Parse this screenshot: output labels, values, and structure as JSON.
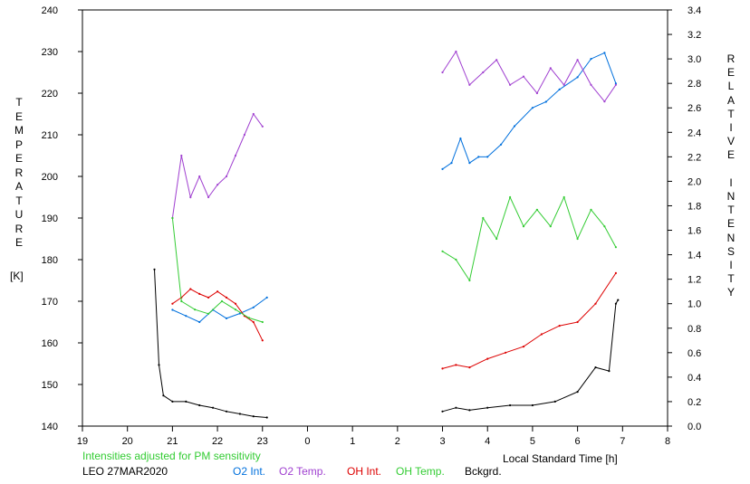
{
  "chart_data": {
    "type": "line",
    "annotation": "Intensities adjusted for PM sensitivity",
    "station_date": "LEO 27MAR2020",
    "xlabel": "Local Standard Time [h]",
    "x_ticks": [
      "19",
      "20",
      "21",
      "22",
      "23",
      "0",
      "1",
      "2",
      "3",
      "4",
      "5",
      "6",
      "7",
      "8"
    ],
    "xlim": [
      19,
      32
    ],
    "y_left": {
      "label": "TEMPERATURE",
      "unit": "[K]",
      "range": [
        140,
        240
      ],
      "ticks": [
        140,
        150,
        160,
        170,
        180,
        190,
        200,
        210,
        220,
        230,
        240
      ]
    },
    "y_right": {
      "label": "RELATIVE INTENSITY",
      "range": [
        0.0,
        3.4
      ],
      "ticks": [
        "0.0",
        "0.2",
        "0.4",
        "0.6",
        "0.8",
        "1.0",
        "1.2",
        "1.4",
        "1.6",
        "1.8",
        "2.0",
        "2.2",
        "2.4",
        "2.6",
        "2.8",
        "3.0",
        "3.2",
        "3.4"
      ]
    },
    "grid": false,
    "legend_position": "bottom",
    "series": [
      {
        "name": "O2 Int.",
        "color": "#0070dd",
        "axis": "right",
        "points": [
          [
            21.0,
            0.95
          ],
          [
            21.3,
            0.9
          ],
          [
            21.6,
            0.85
          ],
          [
            21.9,
            0.95
          ],
          [
            22.2,
            0.88
          ],
          [
            22.5,
            0.92
          ],
          [
            22.8,
            0.97
          ],
          [
            23.1,
            1.05
          ],
          [
            27.0,
            2.1
          ],
          [
            27.2,
            2.15
          ],
          [
            27.4,
            2.35
          ],
          [
            27.6,
            2.15
          ],
          [
            27.8,
            2.2
          ],
          [
            28.0,
            2.2
          ],
          [
            28.3,
            2.3
          ],
          [
            28.6,
            2.45
          ],
          [
            29.0,
            2.6
          ],
          [
            29.3,
            2.65
          ],
          [
            29.6,
            2.75
          ],
          [
            30.0,
            2.85
          ],
          [
            30.3,
            3.0
          ],
          [
            30.6,
            3.05
          ],
          [
            30.85,
            2.8
          ]
        ]
      },
      {
        "name": "O2 Temp.",
        "color": "#a040d0",
        "axis": "left",
        "points": [
          [
            21.0,
            190
          ],
          [
            21.2,
            205
          ],
          [
            21.4,
            195
          ],
          [
            21.6,
            200
          ],
          [
            21.8,
            195
          ],
          [
            22.0,
            198
          ],
          [
            22.2,
            200
          ],
          [
            22.4,
            205
          ],
          [
            22.6,
            210
          ],
          [
            22.8,
            215
          ],
          [
            23.0,
            212
          ],
          [
            27.0,
            225
          ],
          [
            27.3,
            230
          ],
          [
            27.6,
            222
          ],
          [
            27.9,
            225
          ],
          [
            28.2,
            228
          ],
          [
            28.5,
            222
          ],
          [
            28.8,
            224
          ],
          [
            29.1,
            220
          ],
          [
            29.4,
            226
          ],
          [
            29.7,
            222
          ],
          [
            30.0,
            228
          ],
          [
            30.3,
            222
          ],
          [
            30.6,
            218
          ],
          [
            30.85,
            222
          ]
        ]
      },
      {
        "name": "OH Int.",
        "color": "#dd0000",
        "axis": "right",
        "points": [
          [
            21.0,
            1.0
          ],
          [
            21.2,
            1.05
          ],
          [
            21.4,
            1.12
          ],
          [
            21.6,
            1.08
          ],
          [
            21.8,
            1.05
          ],
          [
            22.0,
            1.1
          ],
          [
            22.2,
            1.05
          ],
          [
            22.4,
            1.0
          ],
          [
            22.6,
            0.9
          ],
          [
            22.8,
            0.85
          ],
          [
            23.0,
            0.7
          ],
          [
            27.0,
            0.47
          ],
          [
            27.3,
            0.5
          ],
          [
            27.6,
            0.48
          ],
          [
            28.0,
            0.55
          ],
          [
            28.4,
            0.6
          ],
          [
            28.8,
            0.65
          ],
          [
            29.2,
            0.75
          ],
          [
            29.6,
            0.82
          ],
          [
            30.0,
            0.85
          ],
          [
            30.4,
            1.0
          ],
          [
            30.85,
            1.25
          ]
        ]
      },
      {
        "name": "OH Temp.",
        "color": "#33cc33",
        "axis": "left",
        "points": [
          [
            21.0,
            190
          ],
          [
            21.2,
            170
          ],
          [
            21.5,
            168
          ],
          [
            21.8,
            167
          ],
          [
            22.1,
            170
          ],
          [
            22.4,
            168
          ],
          [
            22.7,
            166
          ],
          [
            23.0,
            165
          ],
          [
            27.0,
            182
          ],
          [
            27.3,
            180
          ],
          [
            27.6,
            175
          ],
          [
            27.9,
            190
          ],
          [
            28.2,
            185
          ],
          [
            28.5,
            195
          ],
          [
            28.8,
            188
          ],
          [
            29.1,
            192
          ],
          [
            29.4,
            188
          ],
          [
            29.7,
            195
          ],
          [
            30.0,
            185
          ],
          [
            30.3,
            192
          ],
          [
            30.6,
            188
          ],
          [
            30.85,
            183
          ]
        ]
      },
      {
        "name": "Bckgrd.",
        "color": "#000000",
        "axis": "right",
        "points": [
          [
            20.6,
            1.28
          ],
          [
            20.7,
            0.5
          ],
          [
            20.8,
            0.25
          ],
          [
            21.0,
            0.2
          ],
          [
            21.3,
            0.2
          ],
          [
            21.6,
            0.17
          ],
          [
            21.9,
            0.15
          ],
          [
            22.2,
            0.12
          ],
          [
            22.5,
            0.1
          ],
          [
            22.8,
            0.08
          ],
          [
            23.1,
            0.07
          ],
          [
            27.0,
            0.12
          ],
          [
            27.3,
            0.15
          ],
          [
            27.6,
            0.13
          ],
          [
            28.0,
            0.15
          ],
          [
            28.5,
            0.17
          ],
          [
            29.0,
            0.17
          ],
          [
            29.5,
            0.2
          ],
          [
            30.0,
            0.28
          ],
          [
            30.4,
            0.48
          ],
          [
            30.7,
            0.45
          ],
          [
            30.85,
            1.0
          ],
          [
            30.9,
            1.03
          ]
        ]
      }
    ]
  }
}
